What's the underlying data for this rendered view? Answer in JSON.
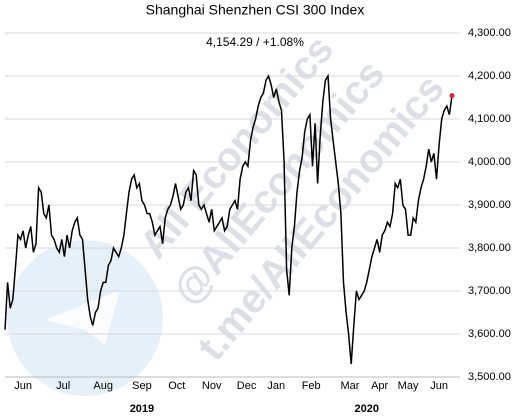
{
  "chart_data": {
    "type": "line",
    "title": "Shanghai Shenzhen CSI 300 Index",
    "subtitle": "4,154.29  /  +1.08%",
    "series": [
      {
        "name": "CSI 300",
        "color": "#000000",
        "values": [
          3610,
          3720,
          3660,
          3680,
          3750,
          3830,
          3820,
          3840,
          3800,
          3830,
          3850,
          3790,
          3810,
          3940,
          3930,
          3880,
          3870,
          3900,
          3830,
          3820,
          3800,
          3790,
          3820,
          3780,
          3830,
          3800,
          3840,
          3860,
          3870,
          3830,
          3820,
          3750,
          3680,
          3640,
          3620,
          3650,
          3660,
          3700,
          3720,
          3720,
          3760,
          3770,
          3800,
          3790,
          3780,
          3800,
          3830,
          3880,
          3930,
          3960,
          3970,
          3940,
          3950,
          3910,
          3900,
          3880,
          3880,
          3860,
          3830,
          3840,
          3850,
          3810,
          3870,
          3890,
          3900,
          3920,
          3950,
          3920,
          3890,
          3900,
          3930,
          3940,
          3910,
          3980,
          3970,
          3900,
          3890,
          3900,
          3880,
          3860,
          3890,
          3840,
          3850,
          3860,
          3870,
          3840,
          3850,
          3890,
          3900,
          3910,
          3890,
          3960,
          3990,
          4000,
          3990,
          4050,
          4080,
          4100,
          4130,
          4150,
          4160,
          4190,
          4200,
          4180,
          4150,
          4170,
          4140,
          4120,
          4000,
          3750,
          3690,
          3800,
          3850,
          3930,
          3980,
          4010,
          4070,
          4100,
          4110,
          3990,
          4090,
          3950,
          4060,
          4140,
          4190,
          4200,
          4100,
          4050,
          4000,
          3950,
          3880,
          3720,
          3650,
          3600,
          3530,
          3620,
          3700,
          3680,
          3690,
          3700,
          3720,
          3750,
          3780,
          3800,
          3820,
          3790,
          3830,
          3840,
          3860,
          3850,
          3880,
          3950,
          3940,
          3960,
          3900,
          3890,
          3830,
          3830,
          3870,
          3860,
          3910,
          3940,
          3960,
          3990,
          4030,
          4000,
          4020,
          3960,
          4040,
          4100,
          4120,
          4130,
          4110,
          4154.29
        ]
      }
    ],
    "last_point_color": "#d62728",
    "xticks": [
      {
        "value": 7,
        "label": "Jun"
      },
      {
        "value": 22.5,
        "label": "Jul"
      },
      {
        "value": 38,
        "label": "Aug"
      },
      {
        "value": 53,
        "label": "Sep"
      },
      {
        "value": 66.5,
        "label": "Oct"
      },
      {
        "value": 80,
        "label": "Nov"
      },
      {
        "value": 93.5,
        "label": "Dec"
      },
      {
        "value": 105,
        "label": "Jan"
      },
      {
        "value": 118.5,
        "label": "Feb"
      },
      {
        "value": 133.5,
        "label": "Mar"
      },
      {
        "value": 145,
        "label": "Apr"
      },
      {
        "value": 156,
        "label": "May"
      },
      {
        "value": 168,
        "label": "Jun"
      }
    ],
    "year_labels": [
      {
        "value": 53,
        "label": "2019"
      },
      {
        "value": 140,
        "label": "2020"
      }
    ],
    "ylim": [
      3500,
      4300
    ],
    "yticks": [
      {
        "value": 3500,
        "label": "3,500.00"
      },
      {
        "value": 3600,
        "label": "3,600.00"
      },
      {
        "value": 3700,
        "label": "3,700.00"
      },
      {
        "value": 3800,
        "label": "3,800.00"
      },
      {
        "value": 3900,
        "label": "3,900.00"
      },
      {
        "value": 4000,
        "label": "4,000.00"
      },
      {
        "value": 4100,
        "label": "4,100.00"
      },
      {
        "value": 4200,
        "label": "4,200.00"
      },
      {
        "value": 4300,
        "label": "4,300.00"
      }
    ],
    "grid": true,
    "watermark": [
      "All Economics",
      "@AllEconomics",
      "t.me/AllEconomics"
    ]
  }
}
